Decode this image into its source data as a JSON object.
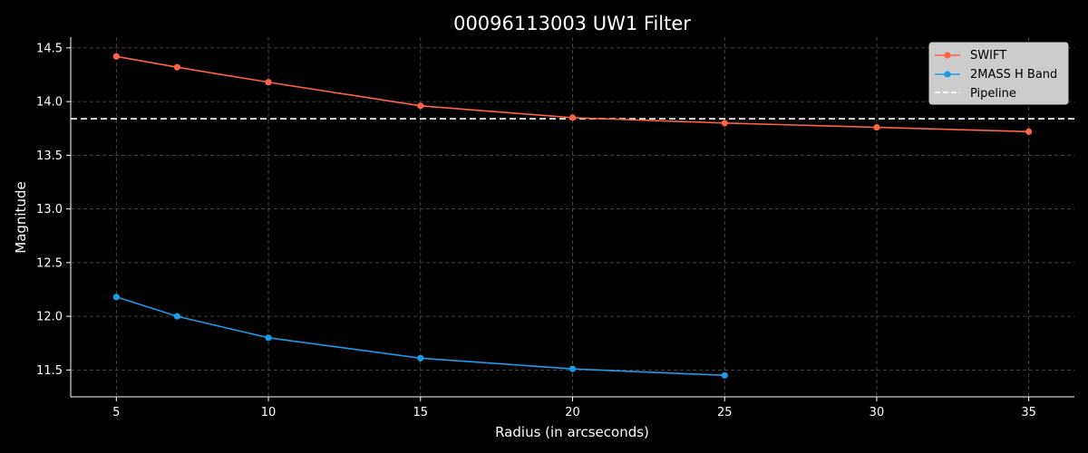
{
  "chart_data": {
    "type": "line",
    "title": "00096113003 UW1 Filter",
    "xlabel": "Radius (in arcseconds)",
    "ylabel": "Magnitude",
    "xlim": [
      3.5,
      36.5
    ],
    "ylim": [
      11.25,
      14.6
    ],
    "xticks": [
      5,
      10,
      15,
      20,
      25,
      30,
      35
    ],
    "yticks": [
      11.5,
      12.0,
      12.5,
      13.0,
      13.5,
      14.0,
      14.5
    ],
    "tick_labels_x": [
      "5",
      "10",
      "15",
      "20",
      "25",
      "30",
      "35"
    ],
    "tick_labels_y": [
      "11.5",
      "12.0",
      "12.5",
      "13.0",
      "13.5",
      "14.0",
      "14.5"
    ],
    "grid": true,
    "legend_position": "top-right",
    "series": [
      {
        "name": "SWIFT",
        "color": "#ff6347",
        "x": [
          5,
          7,
          10,
          15,
          20,
          25,
          30,
          35
        ],
        "y": [
          14.42,
          14.32,
          14.18,
          13.96,
          13.85,
          13.8,
          13.76,
          13.72
        ]
      },
      {
        "name": "2MASS H Band",
        "color": "#1e9be8",
        "x": [
          5,
          7,
          10,
          15,
          20,
          25
        ],
        "y": [
          12.18,
          12.0,
          11.8,
          11.61,
          11.51,
          11.45
        ]
      }
    ],
    "reference_line": {
      "name": "Pipeline",
      "y": 13.84,
      "color": "#ffffff",
      "style": "dashed"
    }
  }
}
